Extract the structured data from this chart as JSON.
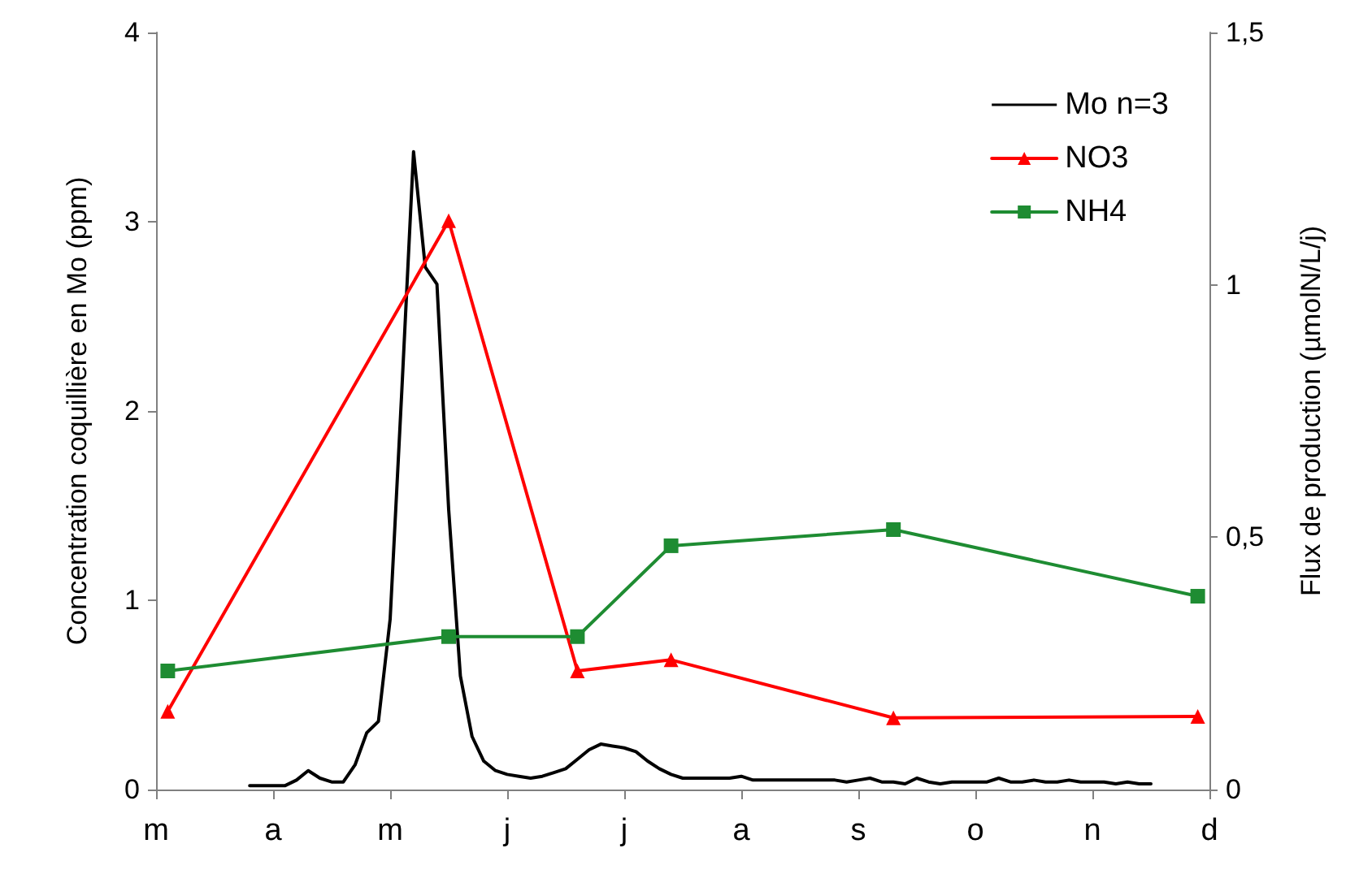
{
  "chart_data": {
    "type": "line",
    "ylabel": "Concentration coquillière en Mo (ppm)",
    "y2label": "Flux de production (µmolN/L/j)",
    "categories": [
      "m",
      null,
      null,
      null,
      null,
      null,
      null,
      null,
      null,
      null,
      "a",
      null,
      null,
      null,
      null,
      null,
      null,
      null,
      null,
      null,
      "m",
      null,
      null,
      null,
      null,
      null,
      null,
      null,
      null,
      null,
      "j",
      null,
      null,
      null,
      null,
      null,
      null,
      null,
      null,
      null,
      "j",
      null,
      null,
      null,
      null,
      null,
      null,
      null,
      null,
      null,
      "a",
      null,
      null,
      null,
      null,
      null,
      null,
      null,
      null,
      null,
      "s",
      null,
      null,
      null,
      null,
      null,
      null,
      null,
      null,
      null,
      "o",
      null,
      null,
      null,
      null,
      null,
      null,
      null,
      null,
      null,
      "n",
      null,
      null,
      null,
      null,
      null,
      null,
      null,
      null,
      null,
      "d"
    ],
    "ylim": [
      0,
      4
    ],
    "yticks": [
      0,
      1,
      2,
      3,
      4
    ],
    "y2lim": [
      0,
      1.5
    ],
    "y2ticks": [
      0,
      {
        "value": 0.5,
        "label": "0,5"
      },
      1,
      {
        "value": 1.5,
        "label": "1,5"
      }
    ],
    "grid": false,
    "legend": "top right",
    "line_style": "solid",
    "series": [
      {
        "name": "Mo n=3",
        "color": "#000000",
        "marker": "none",
        "values": [
          null,
          null,
          null,
          null,
          null,
          null,
          null,
          null,
          0.02,
          0.02,
          0.02,
          0.02,
          0.05,
          0.1,
          0.06,
          0.04,
          0.04,
          0.13,
          0.3,
          0.36,
          0.9,
          2.11,
          3.37,
          2.76,
          2.67,
          1.48,
          0.6,
          0.28,
          0.15,
          0.1,
          0.08,
          0.07,
          0.06,
          0.07,
          0.09,
          0.11,
          0.16,
          0.21,
          0.24,
          0.23,
          0.22,
          0.2,
          0.15,
          0.11,
          0.08,
          0.06,
          0.06,
          0.06,
          0.06,
          0.06,
          0.07,
          0.05,
          0.05,
          0.05,
          0.05,
          0.05,
          0.05,
          0.05,
          0.05,
          0.04,
          0.05,
          0.06,
          0.04,
          0.04,
          0.03,
          0.06,
          0.04,
          0.03,
          0.04,
          0.04,
          0.04,
          0.04,
          0.06,
          0.04,
          0.04,
          0.05,
          0.04,
          0.04,
          0.05,
          0.04,
          0.04,
          0.04,
          0.03,
          0.04,
          0.03,
          0.03,
          null,
          null,
          null,
          null,
          null
        ]
      },
      {
        "name": "NO3",
        "color": "#ff0000",
        "marker": "triangle",
        "axis": "y2",
        "values": [
          null,
          0.155,
          null,
          null,
          null,
          null,
          null,
          null,
          null,
          null,
          null,
          null,
          null,
          null,
          null,
          null,
          null,
          null,
          null,
          null,
          null,
          null,
          null,
          null,
          null,
          1.127,
          null,
          null,
          null,
          null,
          null,
          null,
          null,
          null,
          null,
          null,
          0.235,
          null,
          null,
          null,
          null,
          null,
          null,
          null,
          0.257,
          null,
          null,
          null,
          null,
          null,
          null,
          null,
          null,
          null,
          null,
          null,
          null,
          null,
          null,
          null,
          null,
          null,
          null,
          0.142,
          null,
          null,
          null,
          null,
          null,
          null,
          null,
          null,
          null,
          null,
          null,
          null,
          null,
          null,
          null,
          null,
          null,
          null,
          null,
          null,
          null,
          null,
          null,
          null,
          null,
          0.145,
          null
        ]
      },
      {
        "name": "NH4",
        "color": "#1e8c32",
        "marker": "square",
        "axis": "y2",
        "values": [
          null,
          0.235,
          null,
          null,
          null,
          null,
          null,
          null,
          null,
          null,
          null,
          null,
          null,
          null,
          null,
          null,
          null,
          null,
          null,
          null,
          null,
          null,
          null,
          null,
          null,
          0.303,
          null,
          null,
          null,
          null,
          null,
          null,
          null,
          null,
          null,
          null,
          0.303,
          null,
          null,
          null,
          null,
          null,
          null,
          null,
          0.483,
          null,
          null,
          null,
          null,
          null,
          null,
          null,
          null,
          null,
          null,
          null,
          null,
          null,
          null,
          null,
          null,
          null,
          null,
          0.515,
          null,
          null,
          null,
          null,
          null,
          null,
          null,
          null,
          null,
          null,
          null,
          null,
          null,
          null,
          null,
          null,
          null,
          null,
          null,
          null,
          null,
          null,
          null,
          null,
          null,
          0.383,
          null
        ]
      }
    ]
  }
}
